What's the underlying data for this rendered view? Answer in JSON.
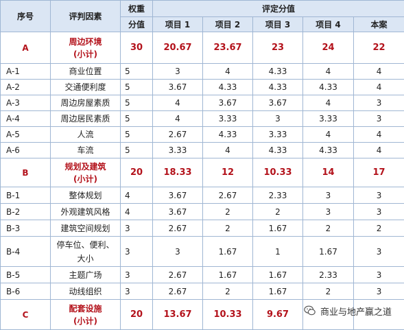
{
  "header": {
    "col_index": "序号",
    "col_factor": "评判因素",
    "col_weight_line1": "权重",
    "col_weight_line2": "分值",
    "col_group": "评定分值",
    "projects": [
      "项目 1",
      "项目 2",
      "项目 3",
      "项目 4",
      "本案"
    ]
  },
  "rows": [
    {
      "id": "A",
      "factor": "周边环境",
      "note": "(小计)",
      "weight": "30",
      "scores": [
        "20.67",
        "23.67",
        "23",
        "24",
        "22"
      ]
    },
    {
      "id": "A-1",
      "factor": "商业位置",
      "weight": "5",
      "scores": [
        "3",
        "4",
        "4.33",
        "4",
        "4"
      ]
    },
    {
      "id": "A-2",
      "factor": "交通便利度",
      "weight": "5",
      "scores": [
        "3.67",
        "4.33",
        "4.33",
        "4.33",
        "4"
      ]
    },
    {
      "id": "A-3",
      "factor": "周边房屋素质",
      "weight": "5",
      "scores": [
        "4",
        "3.67",
        "3.67",
        "4",
        "3"
      ]
    },
    {
      "id": "A-4",
      "factor": "周边居民素质",
      "weight": "5",
      "scores": [
        "4",
        "3.33",
        "3",
        "3.33",
        "3"
      ]
    },
    {
      "id": "A-5",
      "factor": "人流",
      "weight": "5",
      "scores": [
        "2.67",
        "4.33",
        "3.33",
        "4",
        "4"
      ]
    },
    {
      "id": "A-6",
      "factor": "车流",
      "weight": "5",
      "scores": [
        "3.33",
        "4",
        "4.33",
        "4.33",
        "4"
      ]
    },
    {
      "id": "B",
      "factor": "规划及建筑",
      "note": "(小计)",
      "weight": "20",
      "scores": [
        "18.33",
        "12",
        "10.33",
        "14",
        "17"
      ]
    },
    {
      "id": "B-1",
      "factor": "整体规划",
      "weight": "4",
      "scores": [
        "3.67",
        "2.67",
        "2.33",
        "3",
        "3"
      ]
    },
    {
      "id": "B-2",
      "factor": "外观建筑风格",
      "weight": "4",
      "scores": [
        "3.67",
        "2",
        "2",
        "3",
        "3"
      ]
    },
    {
      "id": "B-3",
      "factor": "建筑空间规划",
      "weight": "3",
      "scores": [
        "2.67",
        "2",
        "1.67",
        "2",
        "2"
      ]
    },
    {
      "id": "B-4",
      "factor": "停车位、便利、",
      "factor2": "大小",
      "weight": "3",
      "scores": [
        "3",
        "1.67",
        "1",
        "1.67",
        "3"
      ]
    },
    {
      "id": "B-5",
      "factor": "主题广场",
      "weight": "3",
      "scores": [
        "2.67",
        "1.67",
        "1.67",
        "2.33",
        "3"
      ]
    },
    {
      "id": "B-6",
      "factor": "动线组织",
      "weight": "3",
      "scores": [
        "2.67",
        "2",
        "1.67",
        "2",
        "3"
      ]
    },
    {
      "id": "C",
      "factor": "配套设施",
      "note": "(小计)",
      "weight": "20",
      "scores": [
        "13.67",
        "10.33",
        "9.67",
        "",
        ""
      ]
    }
  ],
  "watermark": {
    "text": "商业与地产赢之道",
    "icon": "wechat-icon"
  }
}
